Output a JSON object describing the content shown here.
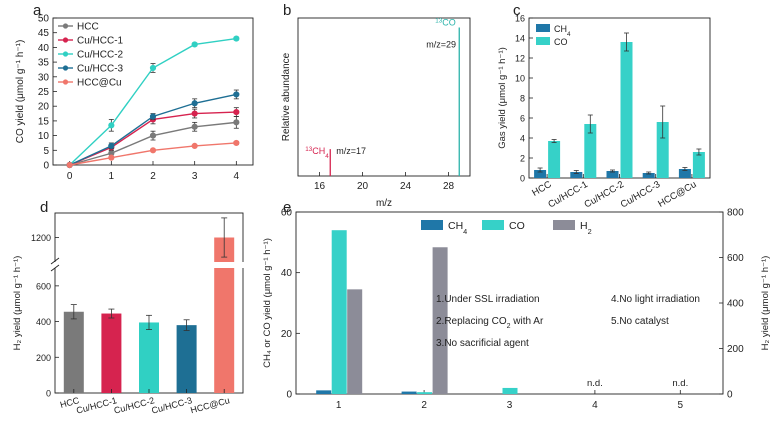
{
  "colors": {
    "HCC": "#7a7a7a",
    "Cu/HCC-1": "#d6234f",
    "Cu/HCC-2": "#30d0c3",
    "Cu/HCC-3": "#1e6f94",
    "HCC@Cu": "#f0766b",
    "CH4": "#1f77a8",
    "CO": "#36d1c8",
    "H2": "#8c8c98",
    "ms_co": "#2ab3aa",
    "ms_ch4": "#d6234f"
  },
  "chart_data": [
    {
      "id": "a",
      "panel_label": "a",
      "type": "line",
      "ylabel": "CO yield (μmol g⁻¹ h⁻¹)",
      "xlabel": "",
      "x": [
        0,
        1,
        2,
        3,
        4
      ],
      "xticks": [
        "0",
        "1",
        "2",
        "3",
        "4"
      ],
      "ylim": [
        0,
        50
      ],
      "yticks": [
        "0",
        "5",
        "10",
        "15",
        "20",
        "25",
        "30",
        "35",
        "40",
        "45",
        "50"
      ],
      "series": [
        {
          "name": "HCC",
          "values": [
            0,
            4.0,
            10.0,
            13.0,
            14.5
          ],
          "err": [
            0,
            1.0,
            1.5,
            1.5,
            2.0
          ]
        },
        {
          "name": "Cu/HCC-1",
          "values": [
            0,
            6.0,
            15.5,
            17.5,
            18.0
          ],
          "err": [
            0,
            1.0,
            1.5,
            1.5,
            1.5
          ]
        },
        {
          "name": "Cu/HCC-2",
          "values": [
            0,
            13.5,
            33.0,
            41.0,
            43.0
          ],
          "err": [
            0,
            2.0,
            1.5,
            0.5,
            0.5
          ]
        },
        {
          "name": "Cu/HCC-3",
          "values": [
            0,
            6.5,
            16.5,
            21.0,
            24.0
          ],
          "err": [
            0,
            1.0,
            1.0,
            1.5,
            1.5
          ]
        },
        {
          "name": "HCC@Cu",
          "values": [
            0,
            2.5,
            5.0,
            6.5,
            7.5
          ],
          "err": [
            0,
            0.3,
            0.3,
            0.3,
            0.5
          ]
        }
      ]
    },
    {
      "id": "b",
      "panel_label": "b",
      "type": "bar",
      "xlabel": "m/z",
      "ylabel": "Relative abundance",
      "xlim": [
        14,
        30
      ],
      "xticks": [
        "16",
        "20",
        "24",
        "28"
      ],
      "ylim": [
        0,
        1
      ],
      "peaks": [
        {
          "species_main": "CH",
          "species_iso": "13",
          "species_sub": "4",
          "mz_label": "m/z=17",
          "mz": 17,
          "intensity": 0.17
        },
        {
          "species_main": "CO",
          "species_iso": "13",
          "mz_label": "m/z=29",
          "mz": 29,
          "intensity": 0.94
        }
      ]
    },
    {
      "id": "c",
      "panel_label": "c",
      "type": "bar",
      "ylabel": "Gas yield (μmol g⁻¹ h⁻¹)",
      "categories": [
        "HCC",
        "Cu/HCC-1",
        "Cu/HCC-2",
        "Cu/HCC-3",
        "HCC@Cu"
      ],
      "ylim": [
        0,
        16
      ],
      "yticks": [
        "0",
        "2",
        "4",
        "6",
        "8",
        "10",
        "12",
        "14",
        "16"
      ],
      "legend": [
        {
          "main": "CH",
          "sub": "4"
        },
        {
          "main": "CO",
          "sub": ""
        }
      ],
      "series": [
        {
          "name": "CH4",
          "values": [
            0.8,
            0.6,
            0.7,
            0.5,
            0.9
          ],
          "err": [
            0.2,
            0.15,
            0.1,
            0.1,
            0.15
          ]
        },
        {
          "name": "CO",
          "values": [
            3.7,
            5.4,
            13.6,
            5.6,
            2.6
          ],
          "err": [
            0.15,
            0.9,
            0.9,
            1.6,
            0.3
          ]
        }
      ]
    },
    {
      "id": "d",
      "panel_label": "d",
      "type": "bar",
      "ylabel": "H₂ yield (μmol g⁻¹ h⁻¹)",
      "categories": [
        "HCC",
        "Cu/HCC-1",
        "Cu/HCC-2",
        "Cu/HCC-3",
        "HCC@Cu"
      ],
      "ylim_lower": [
        0,
        700
      ],
      "ylim_upper": [
        1150,
        1250
      ],
      "yticks": [
        "0",
        "200",
        "400",
        "600",
        "1200"
      ],
      "series": [
        {
          "name": "H2",
          "values": [
            455,
            445,
            395,
            380,
            1200
          ],
          "err": [
            40,
            25,
            40,
            30,
            40
          ]
        }
      ]
    },
    {
      "id": "e",
      "panel_label": "e",
      "type": "bar",
      "ylabel_left": "CH₄ or CO yield (μmol g⁻¹ h⁻¹)",
      "ylabel_right": "H₂ yield (μmol g⁻¹ h⁻¹)",
      "categories": [
        "1",
        "2",
        "3",
        "4",
        "5"
      ],
      "ylim_left": [
        0,
        60
      ],
      "ylim_right": [
        0,
        800
      ],
      "yticks_left": [
        "0",
        "20",
        "40",
        "60"
      ],
      "yticks_right": [
        "0",
        "200",
        "400",
        "600",
        "800"
      ],
      "legend": [
        {
          "main": "CH",
          "sub": "4"
        },
        {
          "main": "CO",
          "sub": ""
        },
        {
          "main": "H",
          "sub": "2"
        }
      ],
      "series": [
        {
          "name": "CH4",
          "values": [
            1.2,
            0.8,
            0.0,
            0.0,
            0.0
          ]
        },
        {
          "name": "CO",
          "values": [
            54,
            0.6,
            2.0,
            0.0,
            0.0
          ]
        },
        {
          "name": "H2",
          "values": [
            460,
            645,
            0.0,
            0.0,
            0.0
          ],
          "axis": "right"
        }
      ],
      "annotations": [
        {
          "text": "n.d.",
          "category": "4"
        },
        {
          "text": "n.d.",
          "category": "5"
        }
      ],
      "conditions": [
        {
          "pre": "1.Under SSL irradiation",
          "sub": "",
          "post": ""
        },
        {
          "pre": "2.Replacing CO",
          "sub": "2",
          "post": " with Ar"
        },
        {
          "pre": "3.No sacrificial agent",
          "sub": "",
          "post": ""
        },
        {
          "pre": "4.No light irradiation",
          "sub": "",
          "post": ""
        },
        {
          "pre": "5.No catalyst",
          "sub": "",
          "post": ""
        }
      ]
    }
  ]
}
